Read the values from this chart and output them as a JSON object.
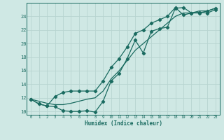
{
  "xlabel": "Humidex (Indice chaleur)",
  "bg_color": "#cfe8e4",
  "grid_color": "#b8d4d0",
  "line_color": "#1a6b60",
  "xlim": [
    0,
    23
  ],
  "ylim": [
    9.5,
    26
  ],
  "xticks": [
    0,
    1,
    2,
    3,
    4,
    5,
    6,
    7,
    8,
    9,
    10,
    11,
    12,
    13,
    14,
    15,
    16,
    17,
    18,
    19,
    20,
    21,
    22,
    23
  ],
  "yticks": [
    10,
    12,
    14,
    16,
    18,
    20,
    22,
    24
  ],
  "series1_x": [
    0,
    1,
    2,
    3,
    4,
    5,
    6,
    7,
    8,
    9,
    10,
    11,
    12,
    13,
    14,
    15,
    16,
    17,
    18,
    19,
    20,
    21,
    22,
    23
  ],
  "series1_y": [
    11.8,
    11.1,
    10.8,
    10.7,
    10.1,
    10.0,
    10.0,
    10.1,
    9.9,
    11.5,
    14.5,
    15.6,
    17.8,
    20.5,
    18.6,
    21.8,
    22.2,
    22.4,
    25.2,
    25.3,
    24.5,
    24.6,
    24.5,
    25.0
  ],
  "series1_markers": true,
  "series2_x": [
    0,
    1,
    2,
    3,
    4,
    5,
    6,
    7,
    8,
    9,
    10,
    11,
    12,
    13,
    14,
    15,
    16,
    17,
    18,
    19,
    20,
    21,
    22,
    23
  ],
  "series2_y": [
    11.8,
    11.1,
    10.8,
    12.2,
    12.8,
    13.0,
    13.0,
    13.0,
    13.0,
    14.5,
    16.5,
    17.8,
    19.5,
    21.5,
    22.0,
    23.0,
    23.5,
    24.0,
    25.3,
    24.2,
    24.5,
    24.5,
    24.8,
    25.2
  ],
  "series2_markers": true,
  "series3_x": [
    0,
    1,
    2,
    3,
    4,
    5,
    6,
    7,
    8,
    9,
    10,
    11,
    12,
    13,
    14,
    15,
    16,
    17,
    18,
    19,
    20,
    21,
    22,
    23
  ],
  "series3_y": [
    11.8,
    11.5,
    11.2,
    11.0,
    11.0,
    11.2,
    11.5,
    11.8,
    12.0,
    13.0,
    14.8,
    16.0,
    17.5,
    19.0,
    20.0,
    21.0,
    22.0,
    23.0,
    24.0,
    24.5,
    24.5,
    24.8,
    24.8,
    25.2
  ],
  "series3_markers": false
}
